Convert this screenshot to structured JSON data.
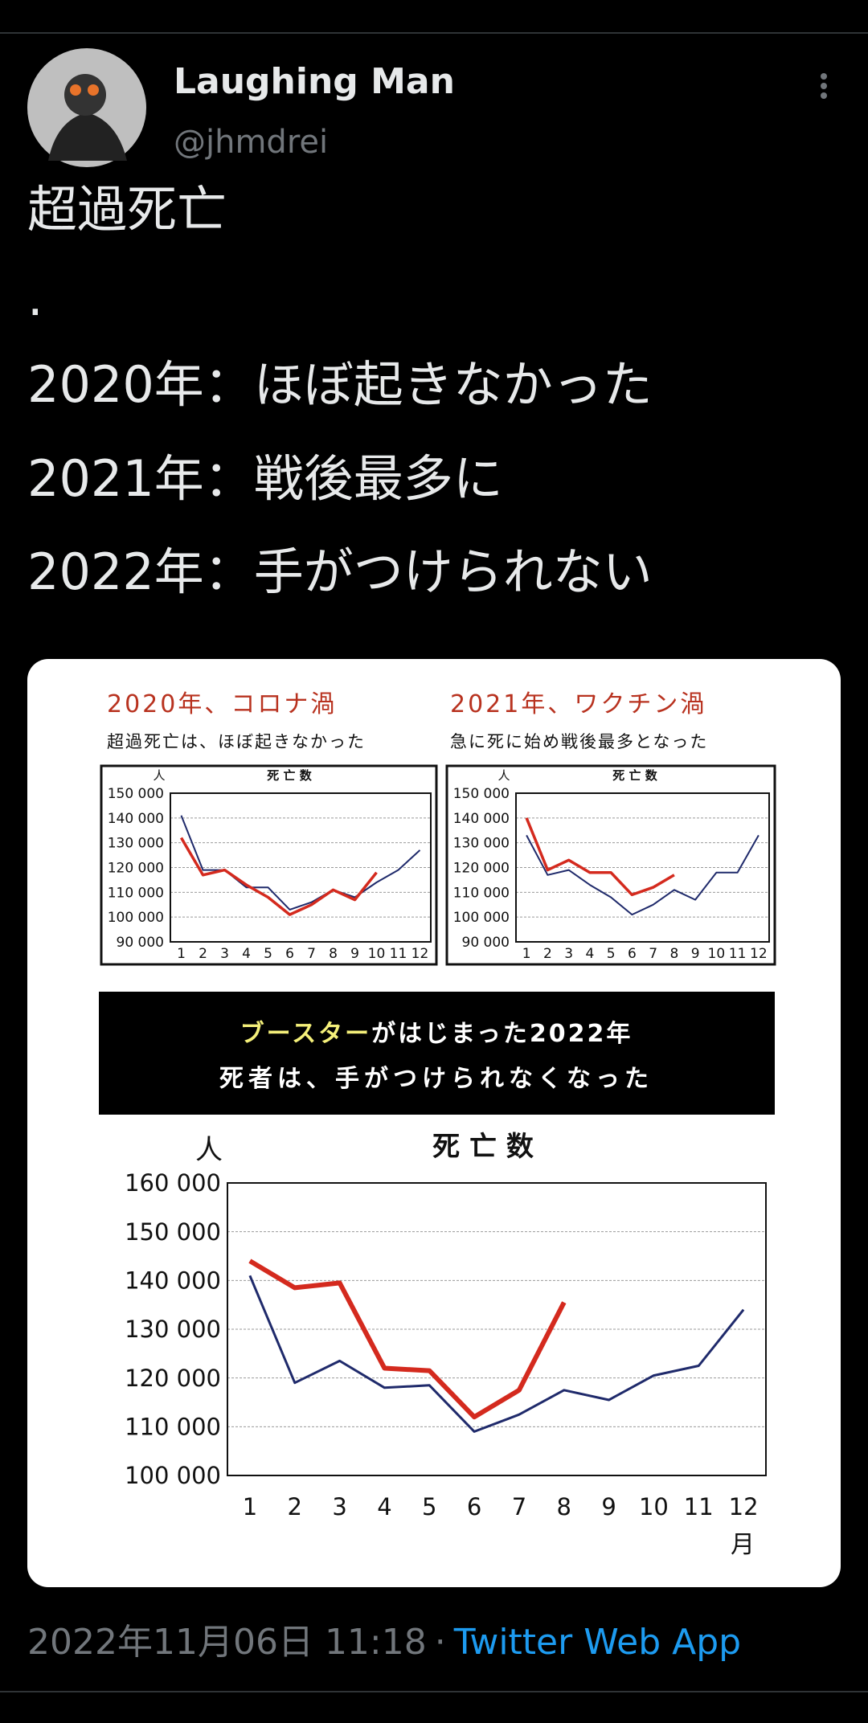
{
  "tweet": {
    "author": {
      "name": "Laughing Man",
      "handle": "@jhmdrei"
    },
    "text_lines": [
      "超過死亡",
      ".",
      "2020年：ほぼ起きなかった",
      "2021年：戦後最多に",
      "2022年：手がつけられない"
    ],
    "timestamp": "2022年11月06日 11:18",
    "separator": "·",
    "source": "Twitter Web App"
  },
  "image": {
    "banner": {
      "highlight": "ブースター",
      "line1": "がはじまった2022年",
      "line2": "死者は、手がつけられなくなった"
    },
    "chart_data": [
      {
        "type": "line",
        "heading": "2020年、コロナ渦",
        "subheading": "超過死亡は、ほぼ起きなかった",
        "title": "死 亡 数",
        "y_unit": "人",
        "categories": [
          "1",
          "2",
          "3",
          "4",
          "5",
          "6",
          "7",
          "8",
          "9",
          "10",
          "11",
          "12"
        ],
        "series": [
          {
            "color": "#1f2a6b",
            "values": [
              141000,
              119000,
              119000,
              112000,
              112000,
              103000,
              106000,
              111000,
              108000,
              114000,
              119000,
              127000
            ]
          },
          {
            "color": "#d42a1e",
            "values": [
              132000,
              117000,
              119000,
              113000,
              108000,
              101000,
              105000,
              111000,
              107000,
              118000,
              null,
              null
            ]
          }
        ],
        "ylim": [
          90000,
          150000
        ],
        "yticks": [
          {
            "value": 90000,
            "label": "90 000"
          },
          {
            "value": 100000,
            "label": "100 000"
          },
          {
            "value": 110000,
            "label": "110 000"
          },
          {
            "value": 120000,
            "label": "120 000"
          },
          {
            "value": 130000,
            "label": "130 000"
          },
          {
            "value": 140000,
            "label": "140 000"
          },
          {
            "value": 150000,
            "label": "150 000"
          }
        ],
        "grid": true
      },
      {
        "type": "line",
        "heading": "2021年、ワクチン渦",
        "subheading": "急に死に始め戦後最多となった",
        "title": "死 亡 数",
        "y_unit": "人",
        "categories": [
          "1",
          "2",
          "3",
          "4",
          "5",
          "6",
          "7",
          "8",
          "9",
          "10",
          "11",
          "12"
        ],
        "series": [
          {
            "color": "#1f2a6b",
            "values": [
              133000,
              117000,
              119000,
              113000,
              108000,
              101000,
              105000,
              111000,
              107000,
              118000,
              118000,
              133000
            ]
          },
          {
            "color": "#d42a1e",
            "values": [
              140000,
              119000,
              123000,
              118000,
              118000,
              109000,
              112000,
              117000,
              null,
              null,
              null,
              null
            ]
          }
        ],
        "ylim": [
          90000,
          150000
        ],
        "yticks": [
          {
            "value": 90000,
            "label": "90 000"
          },
          {
            "value": 100000,
            "label": "100 000"
          },
          {
            "value": 110000,
            "label": "110 000"
          },
          {
            "value": 120000,
            "label": "120 000"
          },
          {
            "value": 130000,
            "label": "130 000"
          },
          {
            "value": 140000,
            "label": "140 000"
          },
          {
            "value": 150000,
            "label": "150 000"
          }
        ],
        "grid": true
      },
      {
        "type": "line",
        "title": "死 亡 数",
        "y_unit": "人",
        "x_label": "月",
        "categories": [
          "1",
          "2",
          "3",
          "4",
          "5",
          "6",
          "7",
          "8",
          "9",
          "10",
          "11",
          "12"
        ],
        "series": [
          {
            "color": "#1f2a6b",
            "values": [
              141000,
              119000,
              123500,
              118000,
              118500,
              109000,
              112500,
              117500,
              115500,
              120500,
              122500,
              134000
            ]
          },
          {
            "color": "#d42a1e",
            "values": [
              144000,
              138500,
              139500,
              122000,
              121500,
              112000,
              117500,
              135500,
              null,
              null,
              null,
              null
            ]
          }
        ],
        "ylim": [
          100000,
          160000
        ],
        "yticks": [
          {
            "value": 100000,
            "label": "100 000"
          },
          {
            "value": 110000,
            "label": "110 000"
          },
          {
            "value": 120000,
            "label": "120 000"
          },
          {
            "value": 130000,
            "label": "130 000"
          },
          {
            "value": 140000,
            "label": "140 000"
          },
          {
            "value": 150000,
            "label": "150 000"
          },
          {
            "value": 160000,
            "label": "160 000"
          }
        ],
        "grid": true
      }
    ]
  }
}
